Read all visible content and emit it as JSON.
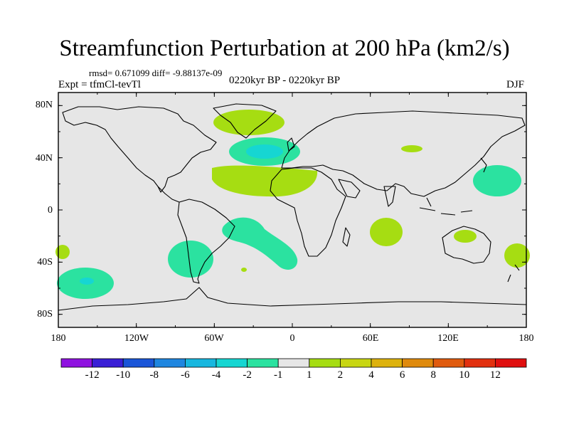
{
  "title": "Streamfunction Perturbation at 200 hPa (km2/s)",
  "stats": "rmsd= 0.671099 diff= -9.88137e-09",
  "expt": "Expt = tfmCl-tevTl",
  "period": "0220kyr BP - 0220kyr BP",
  "season": "DJF",
  "y_axis_labels": [
    "80N",
    "40N",
    "0",
    "40S",
    "80S"
  ],
  "x_axis_labels": [
    "180",
    "120W",
    "60W",
    "0",
    "60E",
    "120E",
    "180"
  ],
  "colorbar": {
    "labels": [
      "-12",
      "-10",
      "-8",
      "-6",
      "-4",
      "-2",
      "-1",
      "1",
      "2",
      "4",
      "6",
      "8",
      "10",
      "12"
    ],
    "colors": [
      "#8f12e0",
      "#3a1fd6",
      "#1a55d8",
      "#1e86e0",
      "#17b7df",
      "#16d6d2",
      "#2be2a0",
      "#e6e6e6",
      "#a6dd12",
      "#c8d612",
      "#ddb20d",
      "#df8a0d",
      "#e05b0e",
      "#e2300f",
      "#e00f0f"
    ]
  },
  "map": {
    "background": "#e6e6e6",
    "regions": [
      {
        "name": "greenland-positive",
        "value": 2,
        "color": "#a6dd12"
      },
      {
        "name": "north-atlantic-negative",
        "value": -2,
        "color": "#2be2a0"
      },
      {
        "name": "north-atlantic-core",
        "value": -4,
        "color": "#16d6d2"
      },
      {
        "name": "subtropical-atlantic-positive",
        "value": 2,
        "color": "#a6dd12"
      },
      {
        "name": "central-asia-positive",
        "value": 1,
        "color": "#a6dd12"
      },
      {
        "name": "north-pacific-negative",
        "value": -2,
        "color": "#2be2a0"
      },
      {
        "name": "south-atlantic-negative",
        "value": -2,
        "color": "#2be2a0"
      },
      {
        "name": "south-america-negative",
        "value": -2,
        "color": "#2be2a0"
      },
      {
        "name": "indian-ocean-positive",
        "value": 2,
        "color": "#a6dd12"
      },
      {
        "name": "australia-positive",
        "value": 2,
        "color": "#a6dd12"
      },
      {
        "name": "southwest-pacific-positive",
        "value": 2,
        "color": "#a6dd12"
      },
      {
        "name": "south-pacific-negative",
        "value": -2,
        "color": "#2be2a0"
      },
      {
        "name": "south-pacific-core",
        "value": -4,
        "color": "#16d6d2"
      },
      {
        "name": "east-pacific-positive",
        "value": 2,
        "color": "#a6dd12"
      },
      {
        "name": "south-atlantic-small-positive",
        "value": 2,
        "color": "#a6dd12"
      }
    ]
  }
}
